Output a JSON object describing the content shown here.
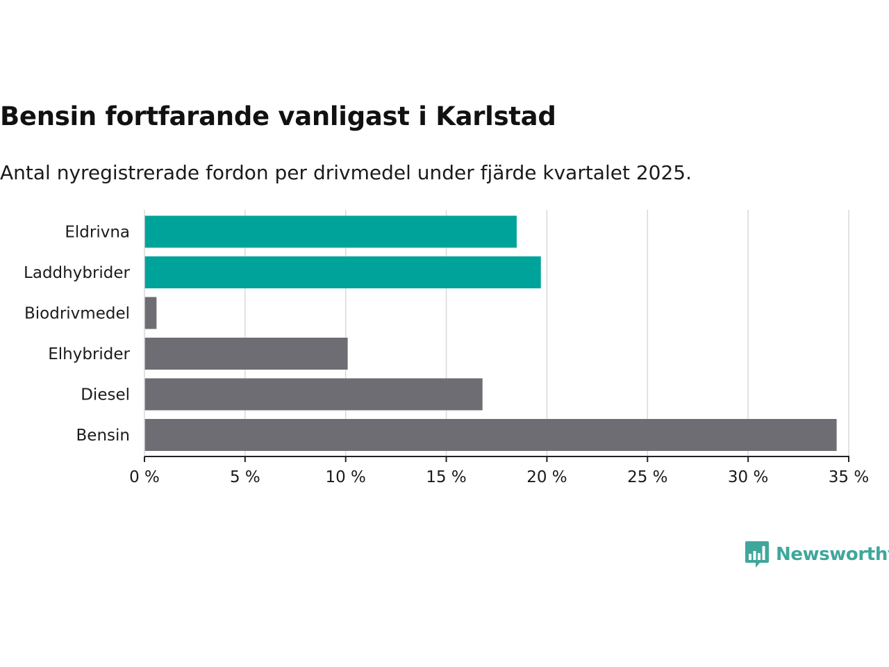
{
  "chart_data": {
    "type": "bar",
    "orientation": "horizontal",
    "title": "Bensin fortfarande vanligast i Karlstad",
    "subtitle": "Antal nyregistrerade fordon per drivmedel under fjärde kvartalet 2025.",
    "categories": [
      "Eldrivna",
      "Laddhybrider",
      "Biodrivmedel",
      "Elhybrider",
      "Diesel",
      "Bensin"
    ],
    "values": [
      18.5,
      19.7,
      0.6,
      10.1,
      16.8,
      34.4
    ],
    "unit": "%",
    "xlim": [
      0,
      35
    ],
    "xticks": [
      0,
      5,
      10,
      15,
      20,
      25,
      30,
      35
    ],
    "xtick_labels": [
      "0 %",
      "5 %",
      "10 %",
      "15 %",
      "20 %",
      "25 %",
      "30 %",
      "35 %"
    ],
    "bar_colors": [
      "#00a39a",
      "#00a39a",
      "#6e6d73",
      "#6e6d73",
      "#6e6d73",
      "#6e6d73"
    ],
    "grid": true,
    "xlabel": "",
    "ylabel": ""
  },
  "brand": {
    "name": "Newsworthy",
    "logo_icon": "newsworthy-bar-chart-icon",
    "color": "#3ea79a"
  },
  "colors": {
    "grid": "#d9d9d9",
    "axis": "#222222",
    "text": "#1a1a1a"
  }
}
